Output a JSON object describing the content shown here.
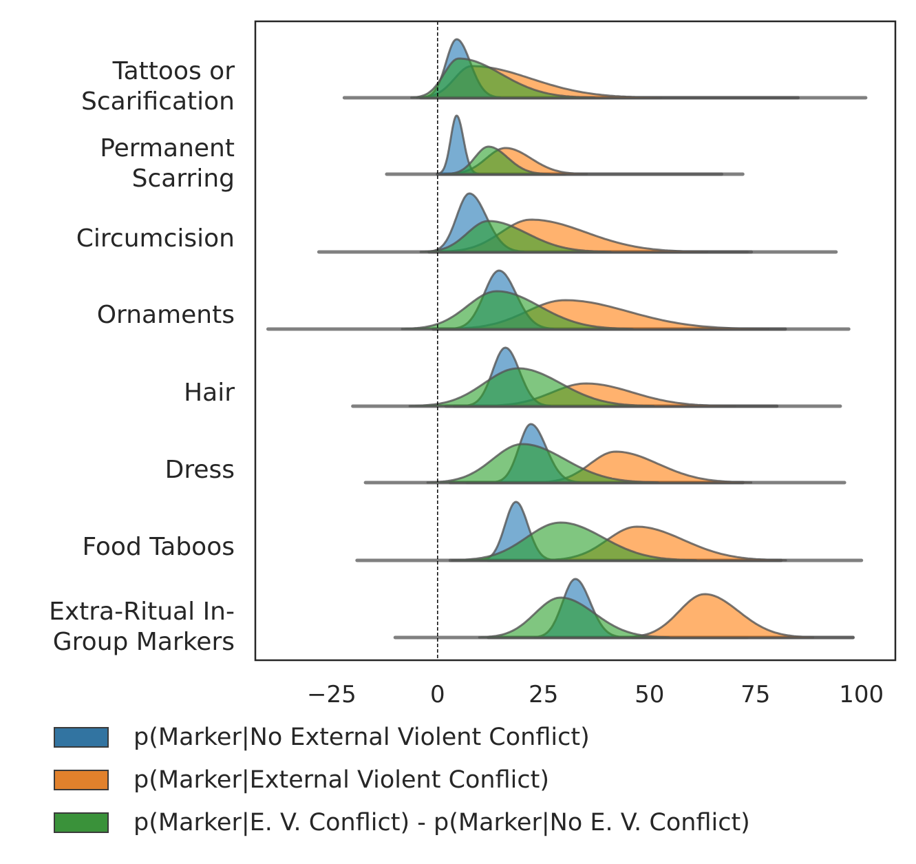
{
  "chart_data": {
    "type": "ridgeline",
    "xlim": [
      -43,
      108
    ],
    "xticks": [
      -25,
      0,
      25,
      50,
      75,
      100
    ],
    "xtick_labels": [
      "−25",
      "0",
      "25",
      "50",
      "75",
      "100"
    ],
    "reference_line": 0,
    "grid": false,
    "legend_placement": "bottom",
    "categories": [
      "Tattoos or Scarification",
      "Permanent Scarring",
      "Circumcision",
      "Ornaments",
      "Hair",
      "Dress",
      "Food Taboos",
      "Extra-Ritual In-Group Markers"
    ],
    "category_label_lines": [
      [
        "Tattoos or",
        "Scarification"
      ],
      [
        "Permanent",
        "Scarring"
      ],
      [
        "Circumcision"
      ],
      [
        "Ornaments"
      ],
      [
        "Hair"
      ],
      [
        "Dress"
      ],
      [
        "Food Taboos"
      ],
      [
        "Extra-Ritual In-",
        "Group Markers"
      ]
    ],
    "series": [
      {
        "name": "p(Marker|No External Violent Conflict)",
        "color": "#1f77b4",
        "legend_color": "#3274a1",
        "distributions": [
          {
            "peak": 4.5,
            "sd_left": 2.5,
            "sd_right": 3.2,
            "min": 0,
            "max": 85
          },
          {
            "peak": 4.5,
            "sd_left": 1.4,
            "sd_right": 1.6,
            "min": 0,
            "max": 30
          },
          {
            "peak": 7.5,
            "sd_left": 3.0,
            "sd_right": 4.0,
            "min": 0,
            "max": 74
          },
          {
            "peak": 14.5,
            "sd_left": 3.5,
            "sd_right": 4.0,
            "min": -1,
            "max": 82
          },
          {
            "peak": 16,
            "sd_left": 3.0,
            "sd_right": 3.3,
            "min": 4,
            "max": 80
          },
          {
            "peak": 22,
            "sd_left": 2.8,
            "sd_right": 3.6,
            "min": 3,
            "max": 72
          },
          {
            "peak": 18.5,
            "sd_left": 2.6,
            "sd_right": 2.8,
            "min": 3,
            "max": 81
          },
          {
            "peak": 32.5,
            "sd_left": 3.0,
            "sd_right": 3.5,
            "min": 12,
            "max": 73
          }
        ]
      },
      {
        "name": "p(Marker|External Violent Conflict)",
        "color": "#ff7f0e",
        "legend_color": "#e1812c",
        "distributions": [
          {
            "peak": 8,
            "sd_left": 4.0,
            "sd_right": 14,
            "min": -4,
            "max": 85
          },
          {
            "peak": 16,
            "sd_left": 4.5,
            "sd_right": 6,
            "min": 0,
            "max": 67
          },
          {
            "peak": 22,
            "sd_left": 7,
            "sd_right": 13,
            "min": -2,
            "max": 73
          },
          {
            "peak": 30,
            "sd_left": 9,
            "sd_right": 15,
            "min": -1,
            "max": 82
          },
          {
            "peak": 35,
            "sd_left": 8,
            "sd_right": 11,
            "min": 2,
            "max": 80
          },
          {
            "peak": 42,
            "sd_left": 6,
            "sd_right": 10,
            "min": 7,
            "max": 72
          },
          {
            "peak": 47,
            "sd_left": 7,
            "sd_right": 11,
            "min": 12,
            "max": 81
          },
          {
            "peak": 63,
            "sd_left": 6,
            "sd_right": 8,
            "min": 46,
            "max": 98
          }
        ]
      },
      {
        "name": "p(Marker|E. V. Conflict) - p(Marker|No E. V. Conflict)",
        "color": "#2ca02c",
        "legend_color": "#3a923a",
        "distributions": [
          {
            "peak": 5,
            "sd_left": 3.5,
            "sd_right": 10,
            "min": -22,
            "max": 101
          },
          {
            "peak": 12,
            "sd_left": 3.2,
            "sd_right": 4.5,
            "min": -12,
            "max": 72
          },
          {
            "peak": 12,
            "sd_left": 5,
            "sd_right": 9,
            "min": -28,
            "max": 94
          },
          {
            "peak": 14,
            "sd_left": 7,
            "sd_right": 10,
            "min": -40,
            "max": 97
          },
          {
            "peak": 19,
            "sd_left": 8,
            "sd_right": 10,
            "min": -20,
            "max": 95
          },
          {
            "peak": 20,
            "sd_left": 7,
            "sd_right": 10,
            "min": -17,
            "max": 96
          },
          {
            "peak": 29,
            "sd_left": 8,
            "sd_right": 10,
            "min": -19,
            "max": 100
          },
          {
            "peak": 29,
            "sd_left": 6,
            "sd_right": 8,
            "min": -10,
            "max": 98
          }
        ]
      }
    ]
  },
  "legend": {
    "items": [
      {
        "label": "p(Marker|No External Violent Conflict)"
      },
      {
        "label": "p(Marker|External Violent Conflict)"
      },
      {
        "label": "p(Marker|E. V. Conflict) - p(Marker|No E. V. Conflict)"
      }
    ]
  }
}
